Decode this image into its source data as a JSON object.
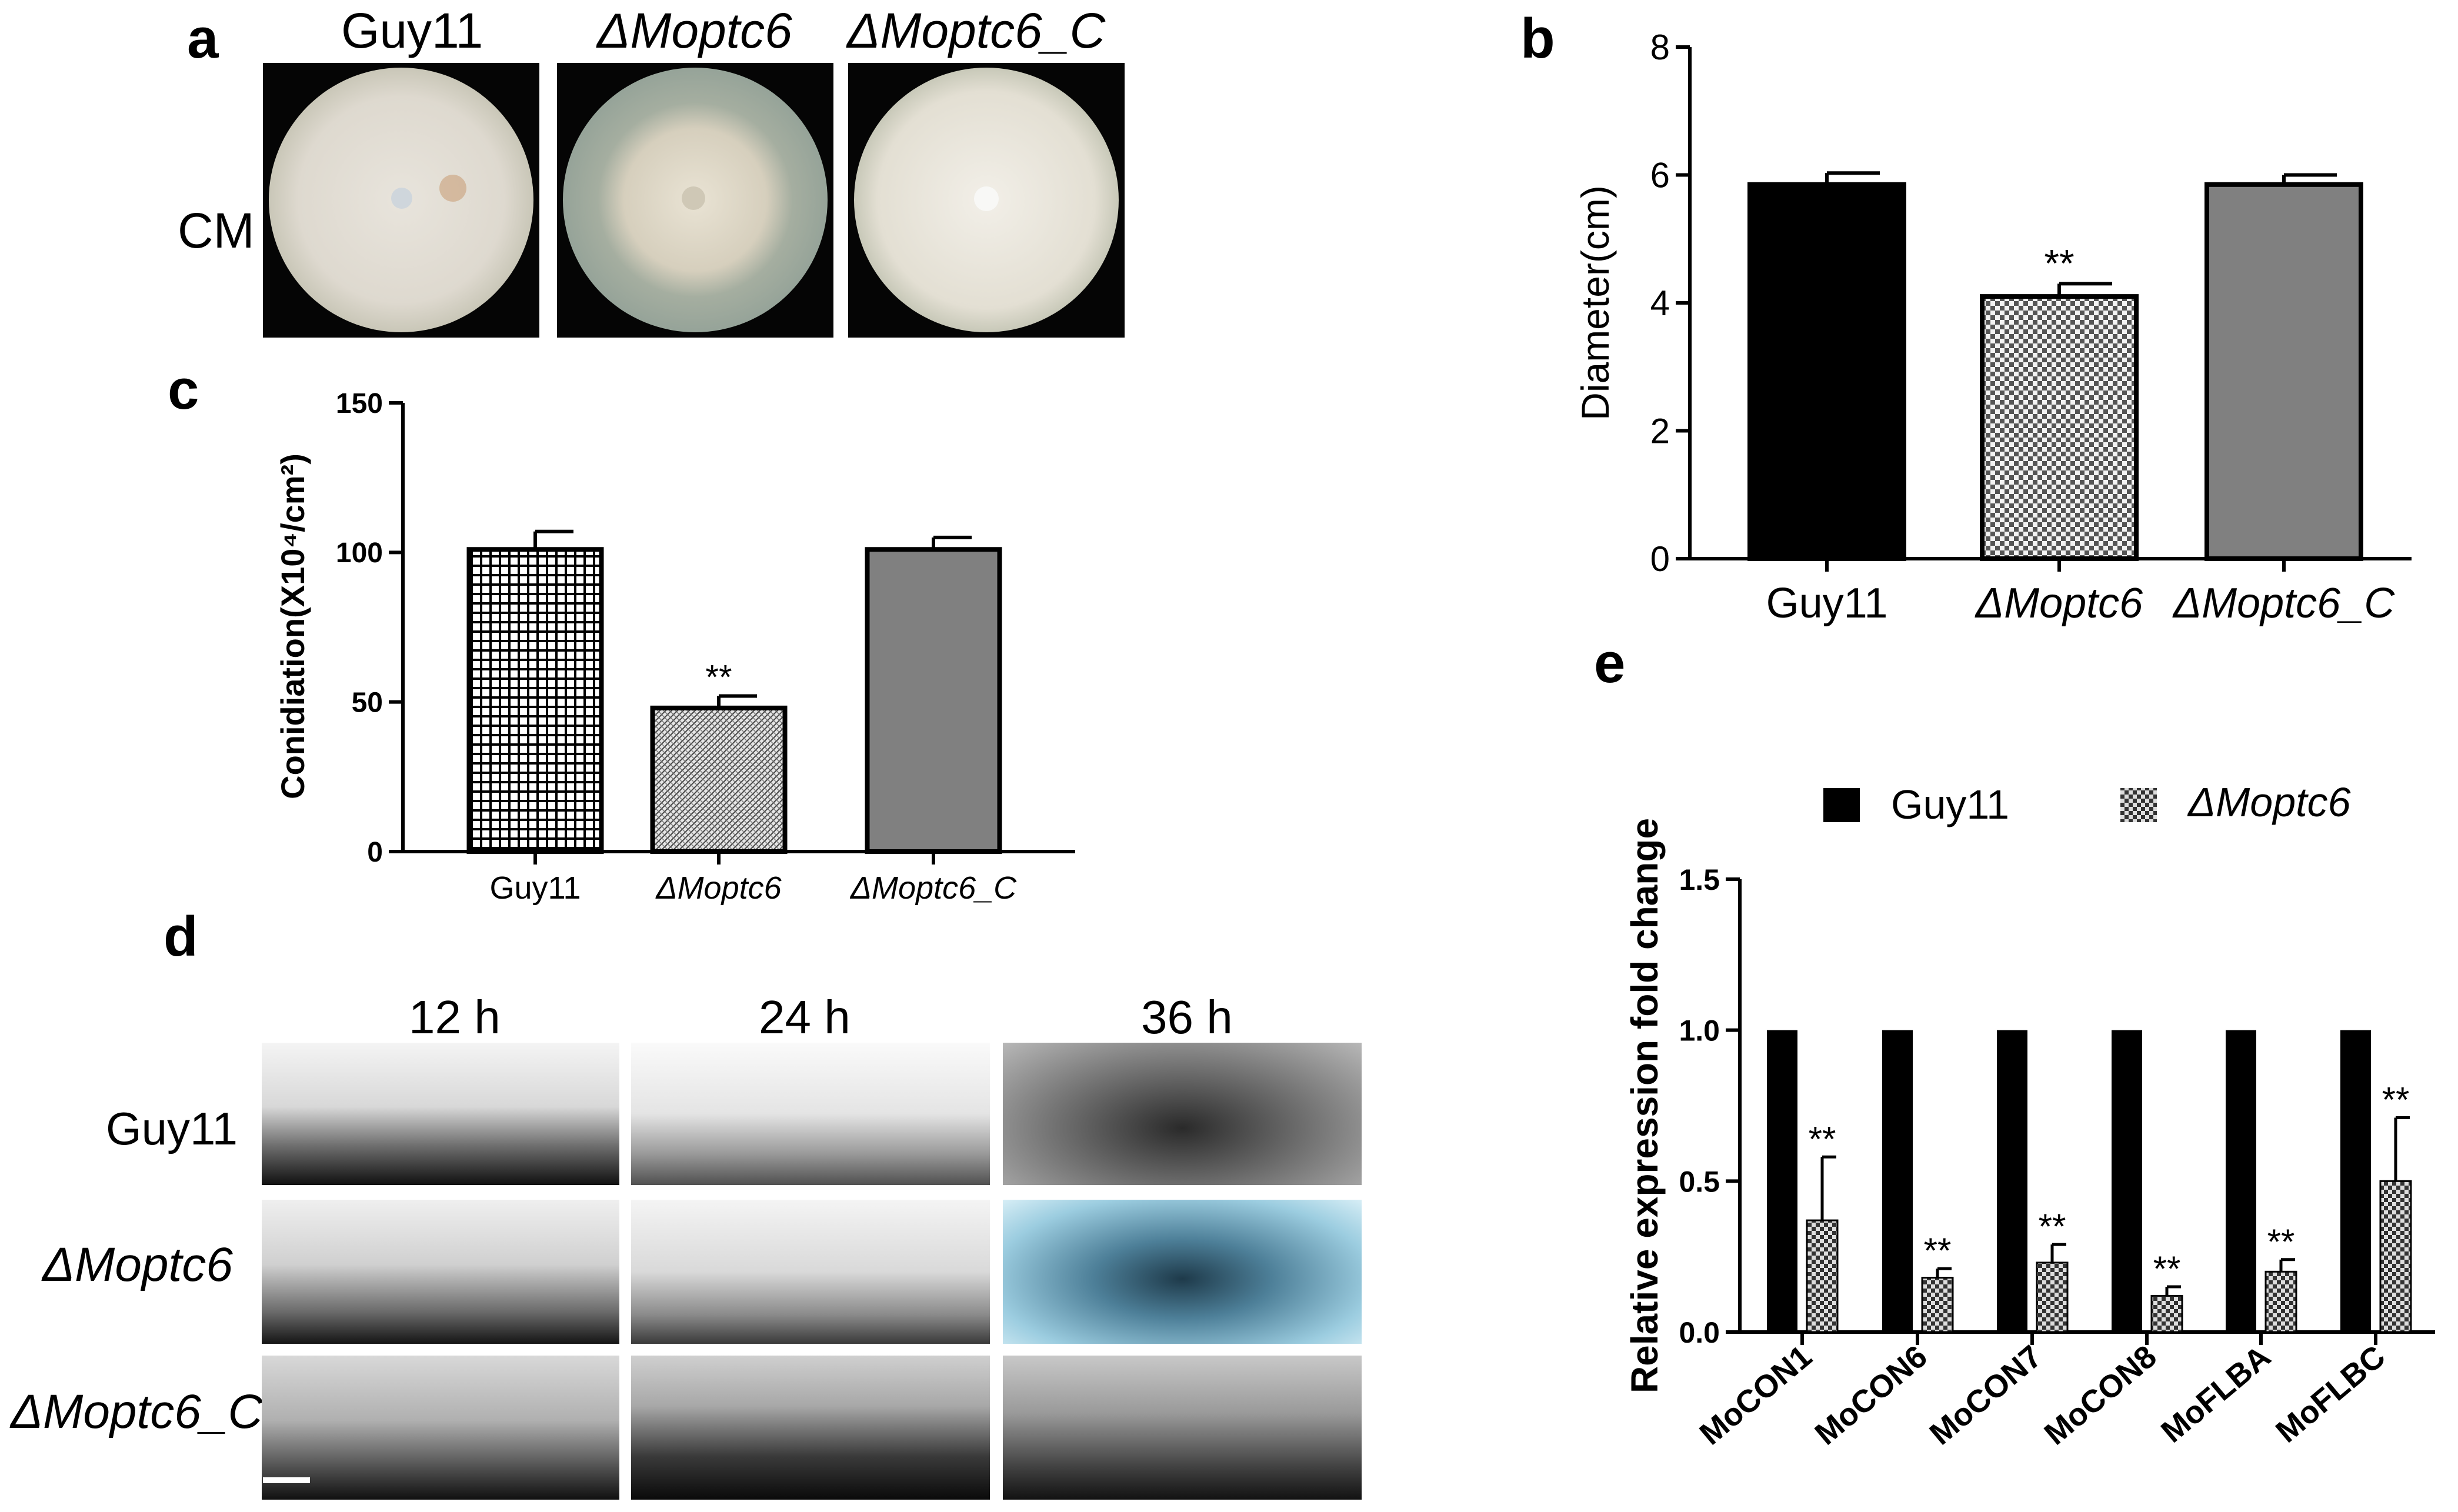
{
  "panels": {
    "a": "a",
    "b": "b",
    "c": "c",
    "d": "d",
    "e": "e"
  },
  "panel_a": {
    "columns": [
      "Guy11",
      "ΔMoptc6",
      "ΔMoptc6_C"
    ],
    "row_label": "CM"
  },
  "panel_d": {
    "times": [
      "12 h",
      "24 h",
      "36 h"
    ],
    "rows": [
      "Guy11",
      "ΔMoptc6",
      "ΔMoptc6_C"
    ]
  },
  "chart_data": [
    {
      "panel": "b",
      "type": "bar",
      "categories": [
        "Guy11",
        "ΔMoptc6",
        "ΔMoptc6_C"
      ],
      "values": [
        5.85,
        4.1,
        5.85
      ],
      "errors": [
        0.18,
        0.2,
        0.15
      ],
      "significance": [
        "",
        "**",
        ""
      ],
      "fills": [
        "solid-black",
        "checkerboard",
        "solid-gray"
      ],
      "ylabel": "Diameter(cm)",
      "ylim": [
        0,
        8
      ],
      "yticks": [
        "0",
        "2",
        "4",
        "6",
        "8"
      ]
    },
    {
      "panel": "c",
      "type": "bar",
      "categories": [
        "Guy11",
        "ΔMoptc6",
        "ΔMoptc6_C"
      ],
      "values": [
        101,
        48,
        101
      ],
      "errors": [
        6,
        4,
        4
      ],
      "significance": [
        "",
        "**",
        ""
      ],
      "fills": [
        "grid",
        "fine-hatch",
        "solid-gray"
      ],
      "ylabel": "Conidiation(X10⁴/cm²)",
      "ylim": [
        0,
        150
      ],
      "yticks": [
        "0",
        "50",
        "100",
        "150"
      ]
    },
    {
      "panel": "e",
      "type": "bar",
      "categories": [
        "MoCON1",
        "MoCON6",
        "MoCON7",
        "MoCON8",
        "MoFLBA",
        "MoFLBC"
      ],
      "series": [
        {
          "name": "Guy11",
          "values": [
            1.0,
            1.0,
            1.0,
            1.0,
            1.0,
            1.0
          ],
          "errors": [
            0,
            0,
            0,
            0,
            0,
            0
          ]
        },
        {
          "name": "ΔMoptc6",
          "values": [
            0.37,
            0.18,
            0.23,
            0.12,
            0.2,
            0.5
          ],
          "errors": [
            0.21,
            0.03,
            0.06,
            0.03,
            0.04,
            0.21
          ]
        }
      ],
      "significance": [
        "**",
        "**",
        "**",
        "**",
        "**",
        "**"
      ],
      "ylabel": "Relative expression fold change",
      "ylim": [
        0,
        1.5
      ],
      "yticks": [
        "0.0",
        "0.5",
        "1.0",
        "1.5"
      ],
      "legend": "top"
    }
  ]
}
